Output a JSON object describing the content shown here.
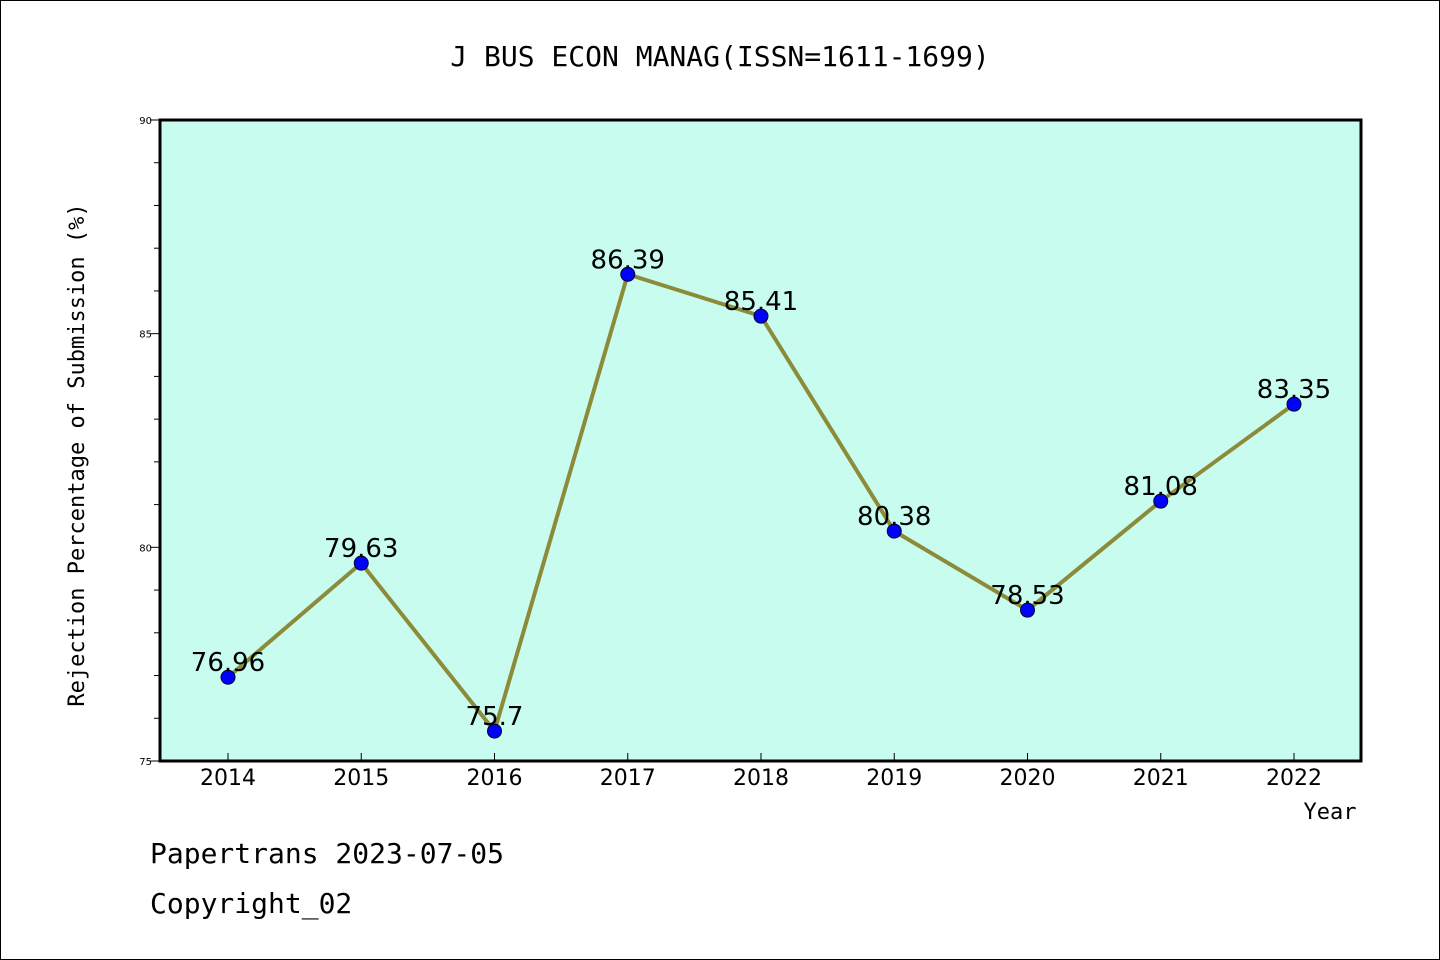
{
  "chart_data": {
    "type": "line",
    "title": "J BUS ECON MANAG(ISSN=1611-1699)",
    "xlabel": "Year",
    "ylabel": "Rejection Percentage of Submission (%)",
    "categories": [
      "2014",
      "2015",
      "2016",
      "2017",
      "2018",
      "2019",
      "2020",
      "2021",
      "2022"
    ],
    "values": [
      76.96,
      79.63,
      75.7,
      86.39,
      85.41,
      80.38,
      78.53,
      81.08,
      83.35
    ],
    "value_labels": [
      "76.96",
      "79.63",
      "75.7",
      "86.39",
      "85.41",
      "80.38",
      "78.53",
      "81.08",
      "83.35"
    ],
    "ylim": [
      75,
      90
    ],
    "yticks": [
      75,
      80,
      85,
      90
    ],
    "grid": false,
    "legend": "none",
    "colors": {
      "plot_background": "#c8fcee",
      "line": "#8b8b3a",
      "marker": "#0000ff"
    }
  },
  "footer": {
    "line1": "Papertrans 2023-07-05",
    "line2": "Copyright_02"
  }
}
